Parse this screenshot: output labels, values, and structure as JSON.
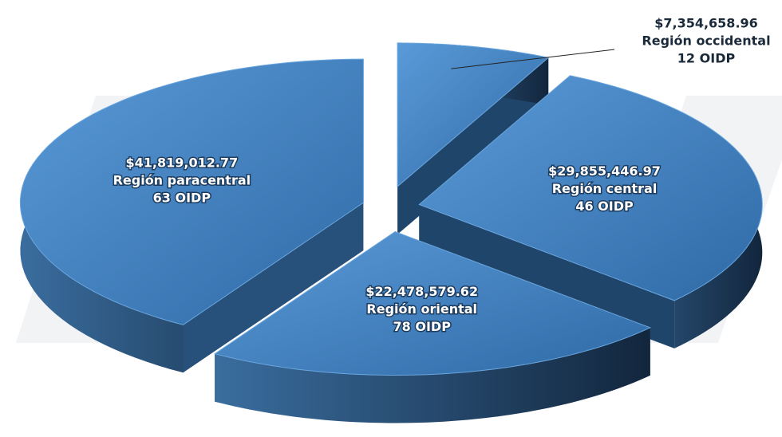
{
  "chart_data": {
    "type": "pie",
    "categories": [
      "Región occidental",
      "Región central",
      "Región oriental",
      "Región paracentral"
    ],
    "values": [
      7354658.96,
      29855446.97,
      22478579.62,
      41819012.77
    ],
    "value_labels": [
      "$7,354,658.96",
      "$29,855,446.97",
      "$22,478,579.62",
      "$41,819,012.77"
    ],
    "oidp_labels": [
      "12 OIDP",
      "46 OIDP",
      "78 OIDP",
      "63 OIDP"
    ],
    "color": "#3f7fc0"
  }
}
